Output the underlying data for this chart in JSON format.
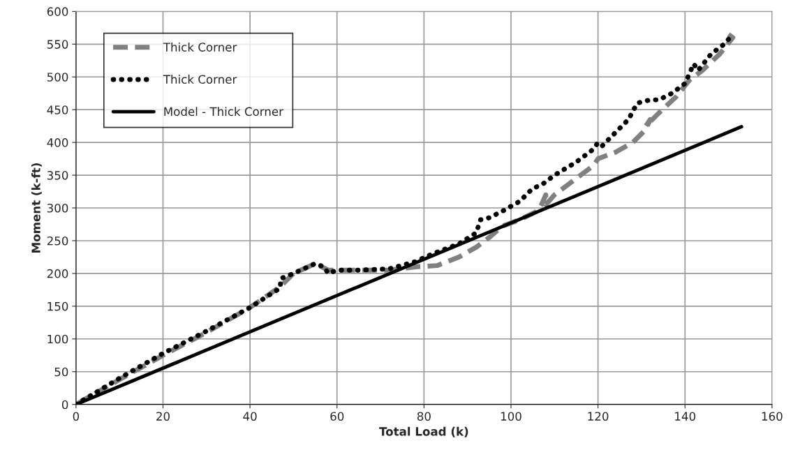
{
  "chart_data": {
    "type": "line",
    "xlabel": "Total Load (k)",
    "ylabel": "Moment (k-ft)",
    "xlim": [
      0,
      160
    ],
    "ylim": [
      0,
      600
    ],
    "xticks": [
      0,
      20,
      40,
      60,
      80,
      100,
      120,
      140,
      160
    ],
    "yticks": [
      0,
      50,
      100,
      150,
      200,
      250,
      300,
      350,
      400,
      450,
      500,
      550,
      600
    ],
    "grid": true,
    "legend": "top left",
    "series": [
      {
        "name": "Thick Corner",
        "color": "#808080",
        "line_style": "dashed",
        "x": [
          0,
          10,
          20,
          30,
          40,
          47,
          50,
          55,
          58,
          65,
          72,
          78,
          83,
          88,
          92,
          95,
          98,
          102,
          106,
          107,
          108,
          108,
          110,
          115,
          119,
          120,
          124,
          128,
          131,
          132,
          131,
          134,
          138,
          141,
          144,
          148,
          151,
          150
        ],
        "values": [
          0,
          38,
          75,
          110,
          148,
          180,
          200,
          215,
          205,
          205,
          205,
          210,
          212,
          225,
          240,
          255,
          272,
          282,
          295,
          305,
          320,
          305,
          320,
          345,
          365,
          375,
          385,
          400,
          420,
          435,
          425,
          445,
          470,
          495,
          510,
          535,
          560,
          565
        ]
      },
      {
        "name": "Thick Corner",
        "color": "#000000",
        "line_style": "dotted",
        "x": [
          0,
          10,
          20,
          30,
          40,
          47,
          47,
          50,
          55,
          57,
          58,
          60,
          65,
          72,
          78,
          82,
          88,
          92,
          93,
          95,
          98,
          102,
          105,
          107,
          110,
          115,
          119,
          120,
          121,
          124,
          127,
          129,
          132,
          134,
          137,
          140,
          142,
          143,
          146,
          149,
          151
        ],
        "values": [
          0,
          40,
          78,
          112,
          148,
          178,
          192,
          200,
          215,
          210,
          200,
          205,
          205,
          207,
          218,
          230,
          245,
          262,
          282,
          285,
          295,
          310,
          330,
          335,
          350,
          370,
          390,
          400,
          395,
          415,
          435,
          460,
          465,
          465,
          475,
          490,
          520,
          510,
          535,
          550,
          565
        ]
      },
      {
        "name": "Model - Thick Corner",
        "color": "#000000",
        "line_style": "solid",
        "x": [
          0,
          153
        ],
        "values": [
          0,
          424
        ]
      }
    ]
  }
}
